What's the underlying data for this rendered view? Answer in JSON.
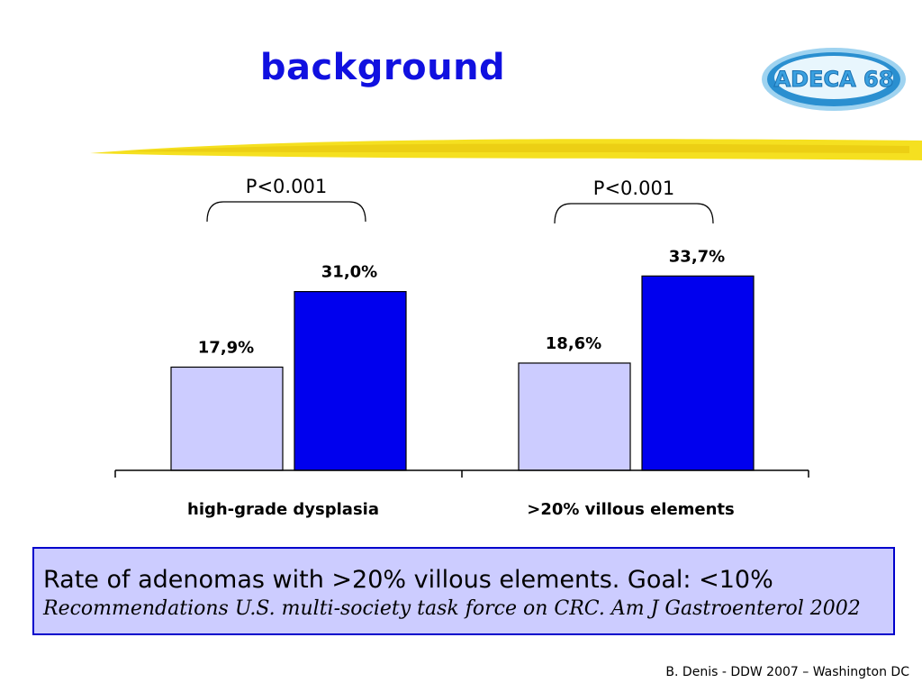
{
  "slide": {
    "title": "background",
    "logo_text": "ADECA 68",
    "footer": "B. Denis - DDW 2007 – Washington DC"
  },
  "colors": {
    "title": "#1010e0",
    "bar_light": "#ccccff",
    "bar_dark": "#0000ee",
    "swoosh": "#f5e020",
    "note_bg": "#ccccff",
    "note_border": "#0000cc"
  },
  "chart_data": {
    "type": "bar",
    "categories": [
      "high-grade dysplasia",
      ">20% villous elements"
    ],
    "series": [
      {
        "values": [
          17.9,
          18.6
        ],
        "labels": [
          "17,9%",
          "18,6%"
        ],
        "color": "#ccccff"
      },
      {
        "values": [
          31.0,
          33.7
        ],
        "labels": [
          "31,0%",
          "33,7%"
        ],
        "color": "#0000ee"
      }
    ],
    "annotations": [
      "P<0.001",
      "P<0.001"
    ],
    "ylim": [
      0,
      50
    ],
    "grid": false,
    "legend": "none"
  },
  "note": {
    "main": "Rate of adenomas with >20% villous elements. Goal: <10%",
    "reference": "Recommendations U.S. multi-society task force on CRC. Am J Gastroenterol 2002"
  }
}
